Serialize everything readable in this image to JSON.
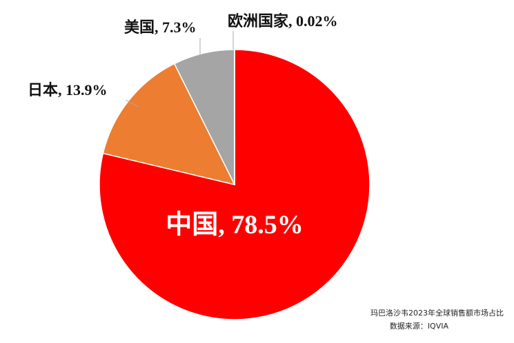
{
  "chart_data": {
    "type": "pie",
    "title": "玛巴洛沙韦2023年全球销售额市场占比",
    "source": "数据来源：IQVIA",
    "categories": [
      "中国",
      "日本",
      "美国",
      "欧洲国家"
    ],
    "values": [
      78.5,
      13.9,
      7.3,
      0.02
    ],
    "value_labels": [
      "中国, 78.5%",
      "日本, 13.9%",
      "美国, 7.3%",
      "欧洲国家, 0.02%"
    ],
    "colors": [
      "#ff0000",
      "#ed7d31",
      "#a5a5a5",
      "#5b9bd5"
    ]
  }
}
